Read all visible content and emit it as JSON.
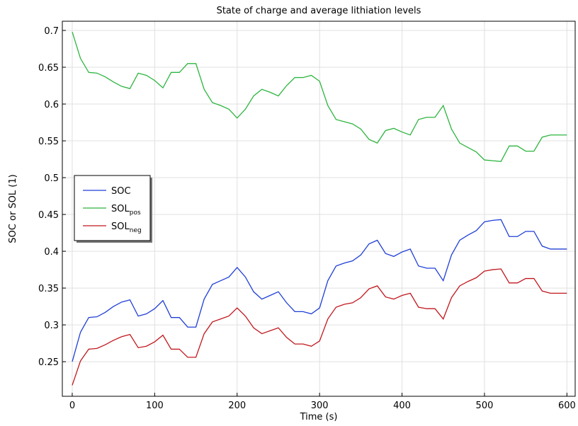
{
  "chart_data": {
    "type": "line",
    "title": "State of charge and average lithiation levels",
    "x_label": "Time (s)",
    "y_label": "SOC or SOL (1)",
    "x": [
      0,
      10,
      20,
      30,
      40,
      50,
      60,
      70,
      80,
      90,
      100,
      110,
      120,
      130,
      140,
      150,
      160,
      170,
      180,
      190,
      200,
      210,
      220,
      230,
      240,
      250,
      260,
      270,
      280,
      290,
      300,
      310,
      320,
      330,
      340,
      350,
      360,
      370,
      380,
      390,
      400,
      410,
      420,
      430,
      440,
      450,
      460,
      470,
      480,
      490,
      500,
      510,
      520,
      530,
      540,
      550,
      560,
      570,
      580,
      590,
      600
    ],
    "series": [
      {
        "name": "SOC",
        "color": "#1f3fd6",
        "values": [
          0.25,
          0.29,
          0.31,
          0.311,
          0.317,
          0.325,
          0.331,
          0.334,
          0.312,
          0.315,
          0.322,
          0.333,
          0.31,
          0.31,
          0.297,
          0.297,
          0.335,
          0.355,
          0.36,
          0.365,
          0.378,
          0.365,
          0.345,
          0.335,
          0.34,
          0.345,
          0.33,
          0.318,
          0.318,
          0.315,
          0.323,
          0.36,
          0.38,
          0.384,
          0.387,
          0.395,
          0.41,
          0.415,
          0.397,
          0.393,
          0.399,
          0.403,
          0.38,
          0.377,
          0.377,
          0.36,
          0.395,
          0.415,
          0.422,
          0.428,
          0.44,
          0.442,
          0.443,
          0.42,
          0.42,
          0.427,
          0.427,
          0.407,
          0.403,
          0.403,
          0.403
        ]
      },
      {
        "name": "SOL",
        "subscript": "pos",
        "color": "#2db53f",
        "values": [
          0.698,
          0.662,
          0.643,
          0.642,
          0.637,
          0.63,
          0.624,
          0.621,
          0.642,
          0.639,
          0.632,
          0.622,
          0.643,
          0.643,
          0.655,
          0.655,
          0.62,
          0.602,
          0.598,
          0.593,
          0.581,
          0.593,
          0.611,
          0.62,
          0.616,
          0.611,
          0.625,
          0.636,
          0.636,
          0.639,
          0.631,
          0.598,
          0.579,
          0.576,
          0.573,
          0.566,
          0.552,
          0.547,
          0.564,
          0.567,
          0.562,
          0.558,
          0.579,
          0.582,
          0.582,
          0.598,
          0.566,
          0.547,
          0.541,
          0.535,
          0.524,
          0.523,
          0.522,
          0.543,
          0.543,
          0.536,
          0.536,
          0.555,
          0.558,
          0.558,
          0.558
        ]
      },
      {
        "name": "SOL",
        "subscript": "neg",
        "color": "#c0181e",
        "values": [
          0.218,
          0.251,
          0.267,
          0.268,
          0.273,
          0.279,
          0.284,
          0.287,
          0.269,
          0.271,
          0.277,
          0.286,
          0.267,
          0.267,
          0.256,
          0.256,
          0.288,
          0.304,
          0.308,
          0.312,
          0.323,
          0.312,
          0.296,
          0.288,
          0.292,
          0.296,
          0.283,
          0.274,
          0.274,
          0.271,
          0.278,
          0.308,
          0.324,
          0.328,
          0.33,
          0.337,
          0.349,
          0.353,
          0.338,
          0.335,
          0.34,
          0.343,
          0.324,
          0.322,
          0.322,
          0.308,
          0.337,
          0.353,
          0.359,
          0.364,
          0.373,
          0.375,
          0.376,
          0.357,
          0.357,
          0.363,
          0.363,
          0.346,
          0.343,
          0.343,
          0.343
        ]
      }
    ],
    "xlim": [
      -12,
      610
    ],
    "ylim": [
      0.203,
      0.7125
    ],
    "xticks": [
      0,
      100,
      200,
      300,
      400,
      500,
      600
    ],
    "yticks": [
      0.25,
      0.3,
      0.35,
      0.4,
      0.45,
      0.5,
      0.55,
      0.6,
      0.65,
      0.7
    ],
    "grid": true,
    "legend": "left"
  }
}
